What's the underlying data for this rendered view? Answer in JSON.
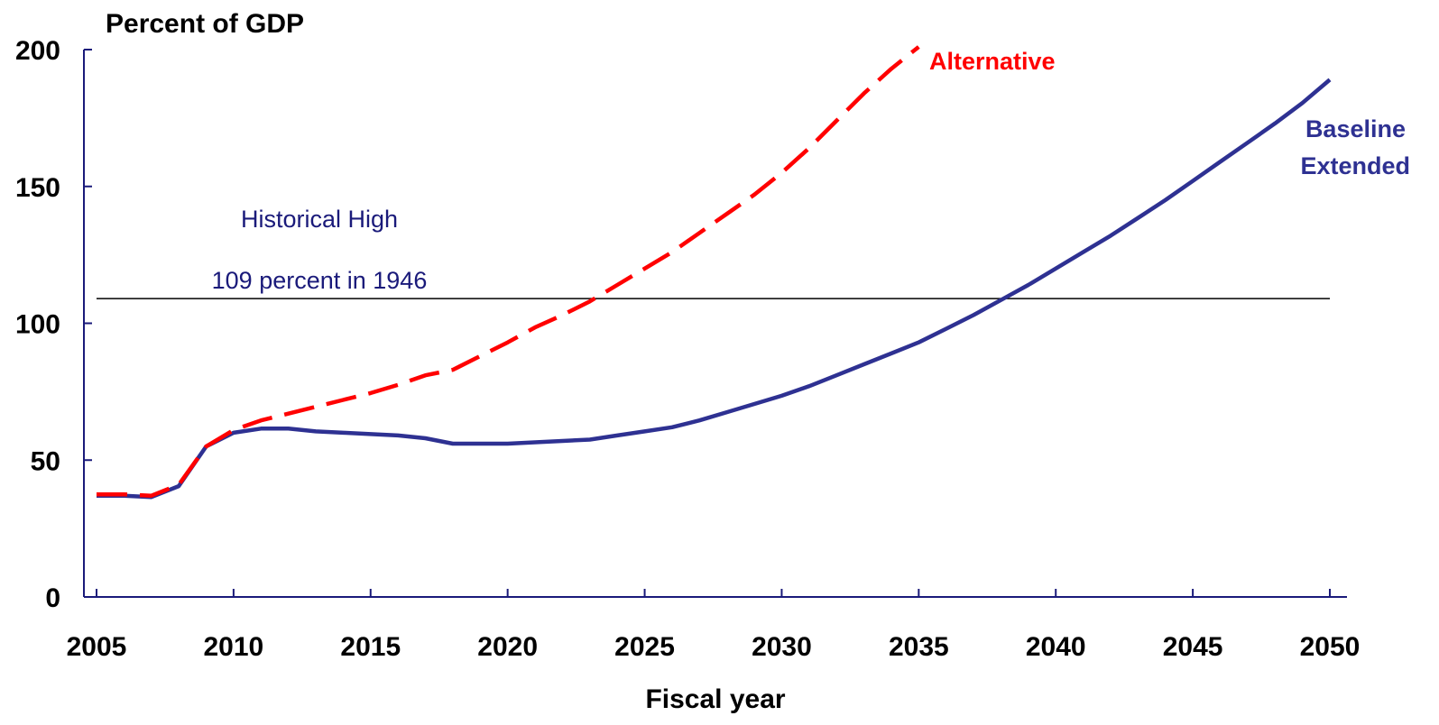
{
  "chart_data": {
    "type": "line",
    "ylabel": "Percent of GDP",
    "xlabel": "Fiscal year",
    "xlim": [
      2005,
      2050
    ],
    "ylim": [
      0,
      200
    ],
    "x_ticks": [
      2005,
      2010,
      2015,
      2020,
      2025,
      2030,
      2035,
      2040,
      2045,
      2050
    ],
    "y_ticks": [
      0,
      50,
      100,
      150,
      200
    ],
    "grid": false,
    "reference_line": {
      "value": 109,
      "label_line1": "Historical High",
      "label_line2": "109 percent in 1946",
      "color": "#000000"
    },
    "series": [
      {
        "name": "Baseline Extended",
        "label_line1": "Baseline",
        "label_line2": "Extended",
        "color": "#2e3192",
        "style": "solid",
        "x": [
          2005,
          2006,
          2007,
          2008,
          2009,
          2010,
          2011,
          2012,
          2013,
          2014,
          2015,
          2016,
          2017,
          2018,
          2019,
          2020,
          2021,
          2022,
          2023,
          2024,
          2025,
          2026,
          2027,
          2028,
          2029,
          2030,
          2031,
          2032,
          2033,
          2034,
          2035,
          2036,
          2037,
          2038,
          2039,
          2040,
          2041,
          2042,
          2043,
          2044,
          2045,
          2046,
          2047,
          2048,
          2049,
          2050
        ],
        "y": [
          37,
          37,
          36.5,
          40.5,
          55,
          60,
          61.5,
          61.5,
          60.5,
          60,
          59.5,
          59,
          58,
          56,
          56,
          56,
          56.5,
          57,
          57.5,
          59,
          60.5,
          62,
          64.5,
          67.5,
          70.5,
          73.5,
          77,
          81,
          85,
          89,
          93,
          98,
          103,
          108.5,
          114,
          120,
          126,
          132,
          138.5,
          145,
          152,
          159,
          166,
          173,
          180.5,
          189
        ]
      },
      {
        "name": "Alternative",
        "label_line1": "Alternative",
        "color": "#ff0000",
        "style": "dashed",
        "x": [
          2005,
          2006,
          2007,
          2008,
          2009,
          2010,
          2011,
          2012,
          2013,
          2014,
          2015,
          2016,
          2017,
          2018,
          2019,
          2020,
          2021,
          2022,
          2023,
          2024,
          2025,
          2026,
          2027,
          2028,
          2029,
          2030,
          2031,
          2032,
          2033,
          2034,
          2035
        ],
        "y": [
          37.5,
          37.5,
          37,
          41,
          55,
          61,
          64.5,
          67,
          69.5,
          72,
          74.5,
          77.5,
          81,
          83,
          88,
          93,
          98.5,
          103,
          108,
          114,
          120,
          126,
          133,
          140,
          147,
          155,
          164,
          174,
          184,
          193,
          201
        ]
      }
    ]
  }
}
